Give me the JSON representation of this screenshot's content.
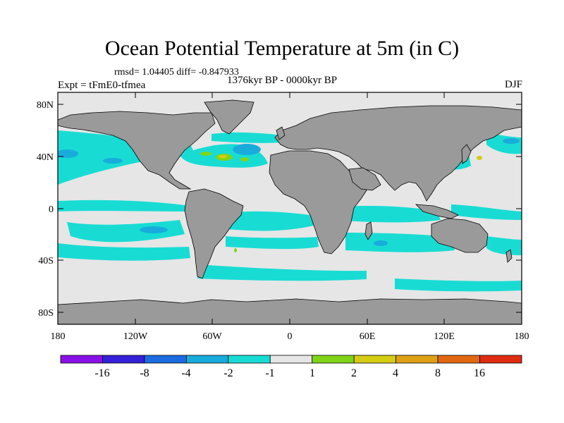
{
  "title": "Ocean Potential Temperature at 5m (in C)",
  "stats": "rmsd= 1.04405 diff= -0.847933",
  "subtitle": "1376kyr BP - 0000kyr BP",
  "experiment": "Expt = tFmE0-tfmea",
  "season": "DJF",
  "axes": {
    "y_ticks": [
      "80N",
      "40N",
      "0",
      "40S",
      "80S"
    ],
    "x_ticks": [
      "180",
      "120W",
      "60W",
      "0",
      "60E",
      "120E",
      "180"
    ]
  },
  "colorbar": {
    "colors": [
      "#8a10e8",
      "#3420d8",
      "#1c6ce0",
      "#18acdc",
      "#18dcd4",
      "#e6e6e6",
      "#80d418",
      "#d4cc10",
      "#e0a014",
      "#e06810",
      "#e02c10"
    ],
    "labels": [
      "-16",
      "-8",
      "-4",
      "-2",
      "-1",
      "1",
      "2",
      "4",
      "8",
      "16"
    ]
  },
  "colors": {
    "land": "#9a9a9a",
    "ocean_neutral": "#e6e6e6",
    "cool_light": "#18dcd4",
    "cool_mid": "#18acdc",
    "warm_green": "#80d418",
    "warm_yellow": "#d4cc10"
  }
}
